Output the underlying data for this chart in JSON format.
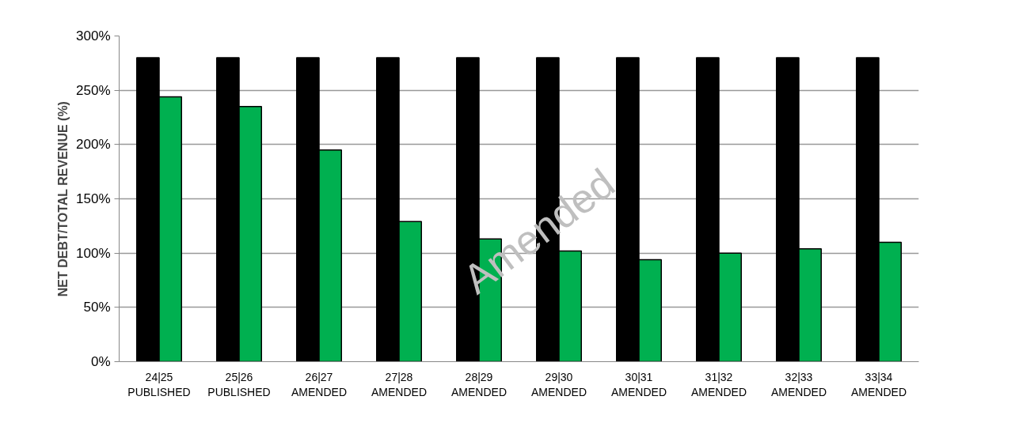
{
  "chart_data": {
    "type": "bar",
    "ylabel": "NET DEBT/TOTAL REVENUE (%)",
    "categories": [
      "24|25\nPUBLISHED",
      "25|26\nPUBLISHED",
      "26|27\nAMENDED",
      "27|28\nAMENDED",
      "28|29\nAMENDED",
      "29|30\nAMENDED",
      "30|31\nAMENDED",
      "31|32\nAMENDED",
      "32|33\nAMENDED",
      "33|34\nAMENDED"
    ],
    "series": [
      {
        "color": "#000000",
        "values": [
          280,
          280,
          280,
          280,
          280,
          280,
          280,
          280,
          280,
          280
        ]
      },
      {
        "color": "#00b050",
        "values": [
          244,
          235,
          195,
          129,
          113,
          102,
          94,
          100,
          104,
          110
        ]
      }
    ],
    "ylim": [
      0,
      300
    ],
    "yticks": [
      {
        "value": 0,
        "label": "0%"
      },
      {
        "value": 50,
        "label": "50%"
      },
      {
        "value": 100,
        "label": "100%"
      },
      {
        "value": 150,
        "label": "150%"
      },
      {
        "value": 200,
        "label": "200%"
      },
      {
        "value": 250,
        "label": "250%"
      },
      {
        "value": 300,
        "label": "300%"
      }
    ],
    "grid": "y",
    "annotations": [
      "Amended"
    ]
  }
}
